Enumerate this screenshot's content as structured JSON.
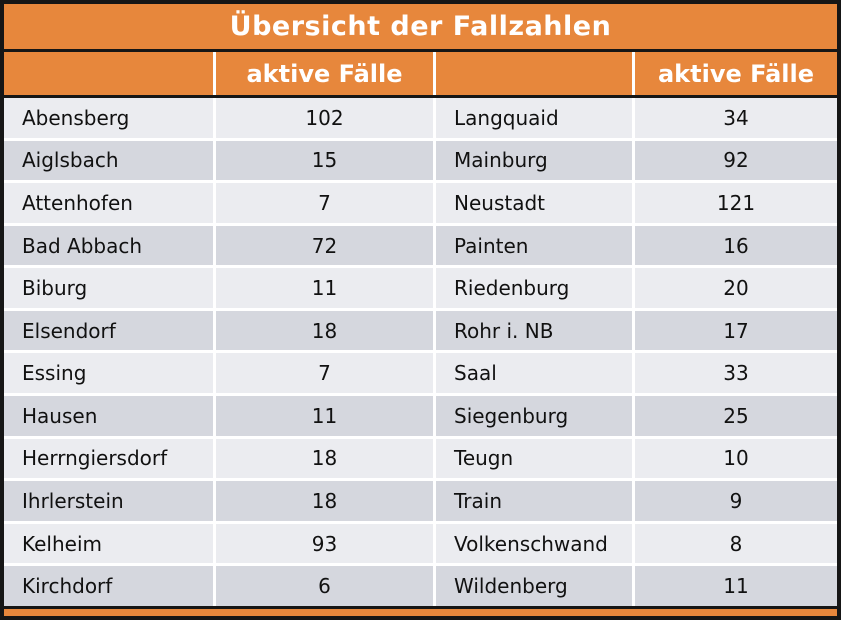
{
  "table": {
    "title": "Übersicht der Fallzahlen",
    "value_header": "aktive Fälle",
    "rows": [
      {
        "left_name": "Abensberg",
        "left_value": "102",
        "right_name": "Langquaid",
        "right_value": "34"
      },
      {
        "left_name": "Aiglsbach",
        "left_value": "15",
        "right_name": "Mainburg",
        "right_value": "92"
      },
      {
        "left_name": "Attenhofen",
        "left_value": "7",
        "right_name": "Neustadt",
        "right_value": "121"
      },
      {
        "left_name": "Bad Abbach",
        "left_value": "72",
        "right_name": "Painten",
        "right_value": "16"
      },
      {
        "left_name": "Biburg",
        "left_value": "11",
        "right_name": "Riedenburg",
        "right_value": "20"
      },
      {
        "left_name": "Elsendorf",
        "left_value": "18",
        "right_name": "Rohr i. NB",
        "right_value": "17"
      },
      {
        "left_name": "Essing",
        "left_value": "7",
        "right_name": "Saal",
        "right_value": "33"
      },
      {
        "left_name": "Hausen",
        "left_value": "11",
        "right_name": "Siegenburg",
        "right_value": "25"
      },
      {
        "left_name": "Herrngiersdorf",
        "left_value": "18",
        "right_name": "Teugn",
        "right_value": "10"
      },
      {
        "left_name": "Ihrlerstein",
        "left_value": "18",
        "right_name": "Train",
        "right_value": "9"
      },
      {
        "left_name": "Kelheim",
        "left_value": "93",
        "right_name": "Volkenschwand",
        "right_value": "8"
      },
      {
        "left_name": "Kirchdorf",
        "left_value": "6",
        "right_name": "Wildenberg",
        "right_value": "11"
      }
    ]
  },
  "chart_data": {
    "type": "table",
    "title": "Übersicht der Fallzahlen",
    "value_column": "aktive Fälle",
    "rows": [
      {
        "name": "Abensberg",
        "value": 102
      },
      {
        "name": "Aiglsbach",
        "value": 15
      },
      {
        "name": "Attenhofen",
        "value": 7
      },
      {
        "name": "Bad Abbach",
        "value": 72
      },
      {
        "name": "Biburg",
        "value": 11
      },
      {
        "name": "Elsendorf",
        "value": 18
      },
      {
        "name": "Essing",
        "value": 7
      },
      {
        "name": "Hausen",
        "value": 11
      },
      {
        "name": "Herrngiersdorf",
        "value": 18
      },
      {
        "name": "Ihrlerstein",
        "value": 18
      },
      {
        "name": "Kelheim",
        "value": 93
      },
      {
        "name": "Kirchdorf",
        "value": 6
      },
      {
        "name": "Langquaid",
        "value": 34
      },
      {
        "name": "Mainburg",
        "value": 92
      },
      {
        "name": "Neustadt",
        "value": 121
      },
      {
        "name": "Painten",
        "value": 16
      },
      {
        "name": "Riedenburg",
        "value": 20
      },
      {
        "name": "Rohr i. NB",
        "value": 17
      },
      {
        "name": "Saal",
        "value": 33
      },
      {
        "name": "Siegenburg",
        "value": 25
      },
      {
        "name": "Teugn",
        "value": 10
      },
      {
        "name": "Train",
        "value": 9
      },
      {
        "name": "Volkenschwand",
        "value": 8
      },
      {
        "name": "Wildenberg",
        "value": 11
      }
    ]
  },
  "colors": {
    "accent_orange": "#E7873C",
    "row_light": "#EBECF0",
    "row_dark": "#D5D7DE",
    "border": "#161616",
    "header_text": "#FFFFFF",
    "cell_text": "#111111"
  }
}
